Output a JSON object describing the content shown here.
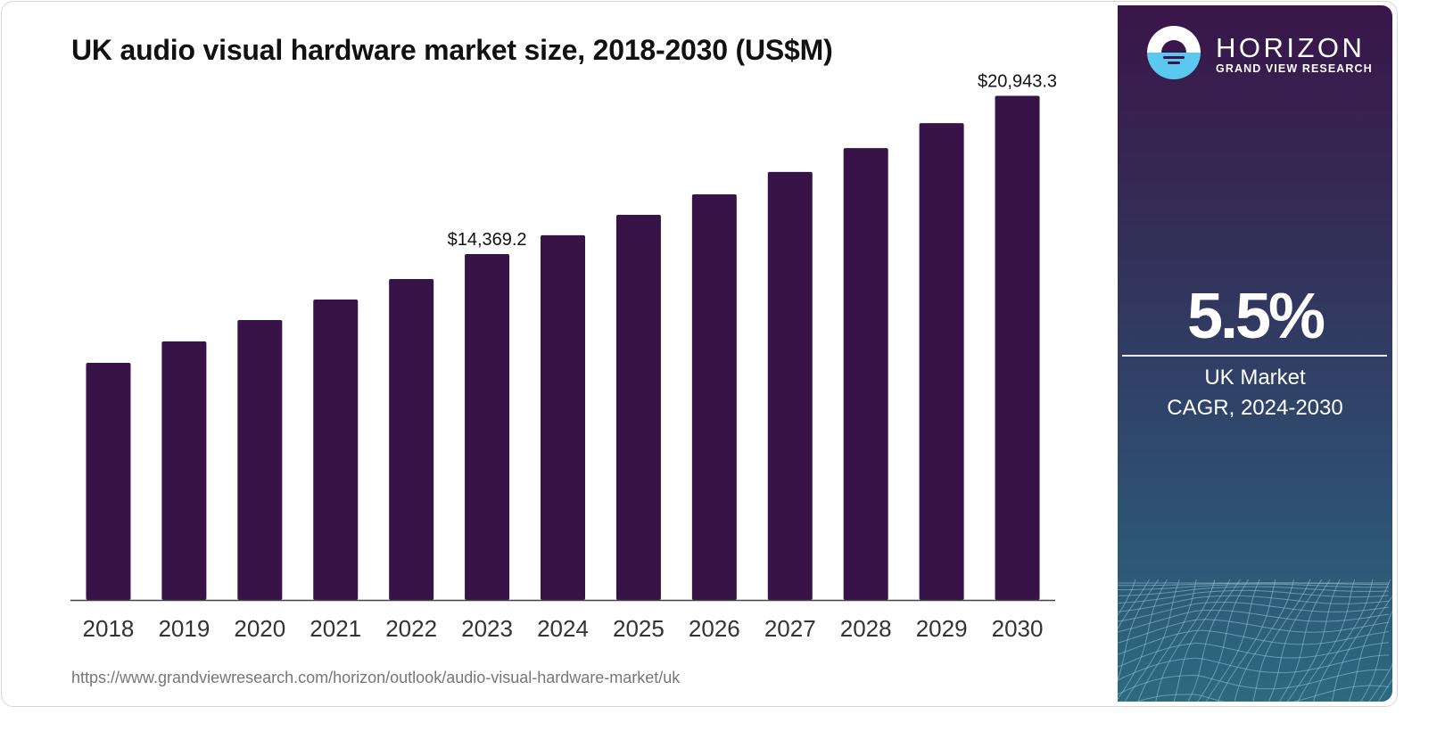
{
  "chart_data": {
    "type": "bar",
    "title": "UK audio visual hardware market size, 2018-2030 (US$M)",
    "xlabel": "",
    "ylabel": "",
    "categories": [
      "2018",
      "2019",
      "2020",
      "2021",
      "2022",
      "2023",
      "2024",
      "2025",
      "2026",
      "2027",
      "2028",
      "2029",
      "2030"
    ],
    "values": [
      9850,
      10740,
      11630,
      12480,
      13330,
      14369.2,
      15150,
      16000,
      16850,
      17780,
      18770,
      19810,
      20943.3
    ],
    "data_labels": [
      {
        "category": "2023",
        "text": "$14,369.2"
      },
      {
        "category": "2030",
        "text": "$20,943.3"
      }
    ],
    "ylim": [
      0,
      22000
    ],
    "grid": false,
    "bar_color": "#371347",
    "legend": "none"
  },
  "source_url": "https://www.grandviewresearch.com/horizon/outlook/audio-visual-hardware-market/uk",
  "sidebar": {
    "brand": "HORIZON",
    "brand_sub": "GRAND VIEW RESEARCH",
    "logo_icon": "horizon-sun-logo",
    "cagr_value": "5.5%",
    "cagr_label_1": "UK Market",
    "cagr_label_2": "CAGR, 2024-2030"
  },
  "colors": {
    "bar": "#371347",
    "sidebar_top": "#3a1549",
    "sidebar_bottom": "#2c6a80",
    "logo_water": "#5bc8f0"
  }
}
